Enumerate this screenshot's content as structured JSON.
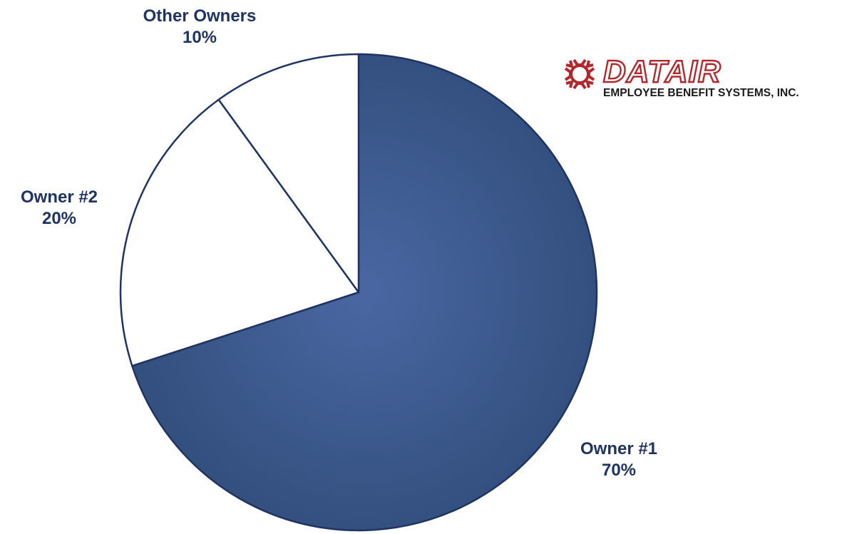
{
  "chart_data": {
    "type": "pie",
    "title": "",
    "slices": [
      {
        "label": "Owner #1",
        "value": 70,
        "value_label": "70%",
        "color": "#3b5890"
      },
      {
        "label": "Owner #2",
        "value": 20,
        "value_label": "20%",
        "color": "#ffffff"
      },
      {
        "label": "Other Owners",
        "value": 10,
        "value_label": "10%",
        "color": "#ffffff"
      }
    ],
    "start_angle": "12 o'clock",
    "direction": "clockwise",
    "legend": "none",
    "outline_color": "#1f3462",
    "label_color": "#1f3462"
  },
  "logo": {
    "name": "DATAIR",
    "subtitle": "EMPLOYEE BENEFIT SYSTEMS, INC.",
    "color": "#b3272c"
  }
}
